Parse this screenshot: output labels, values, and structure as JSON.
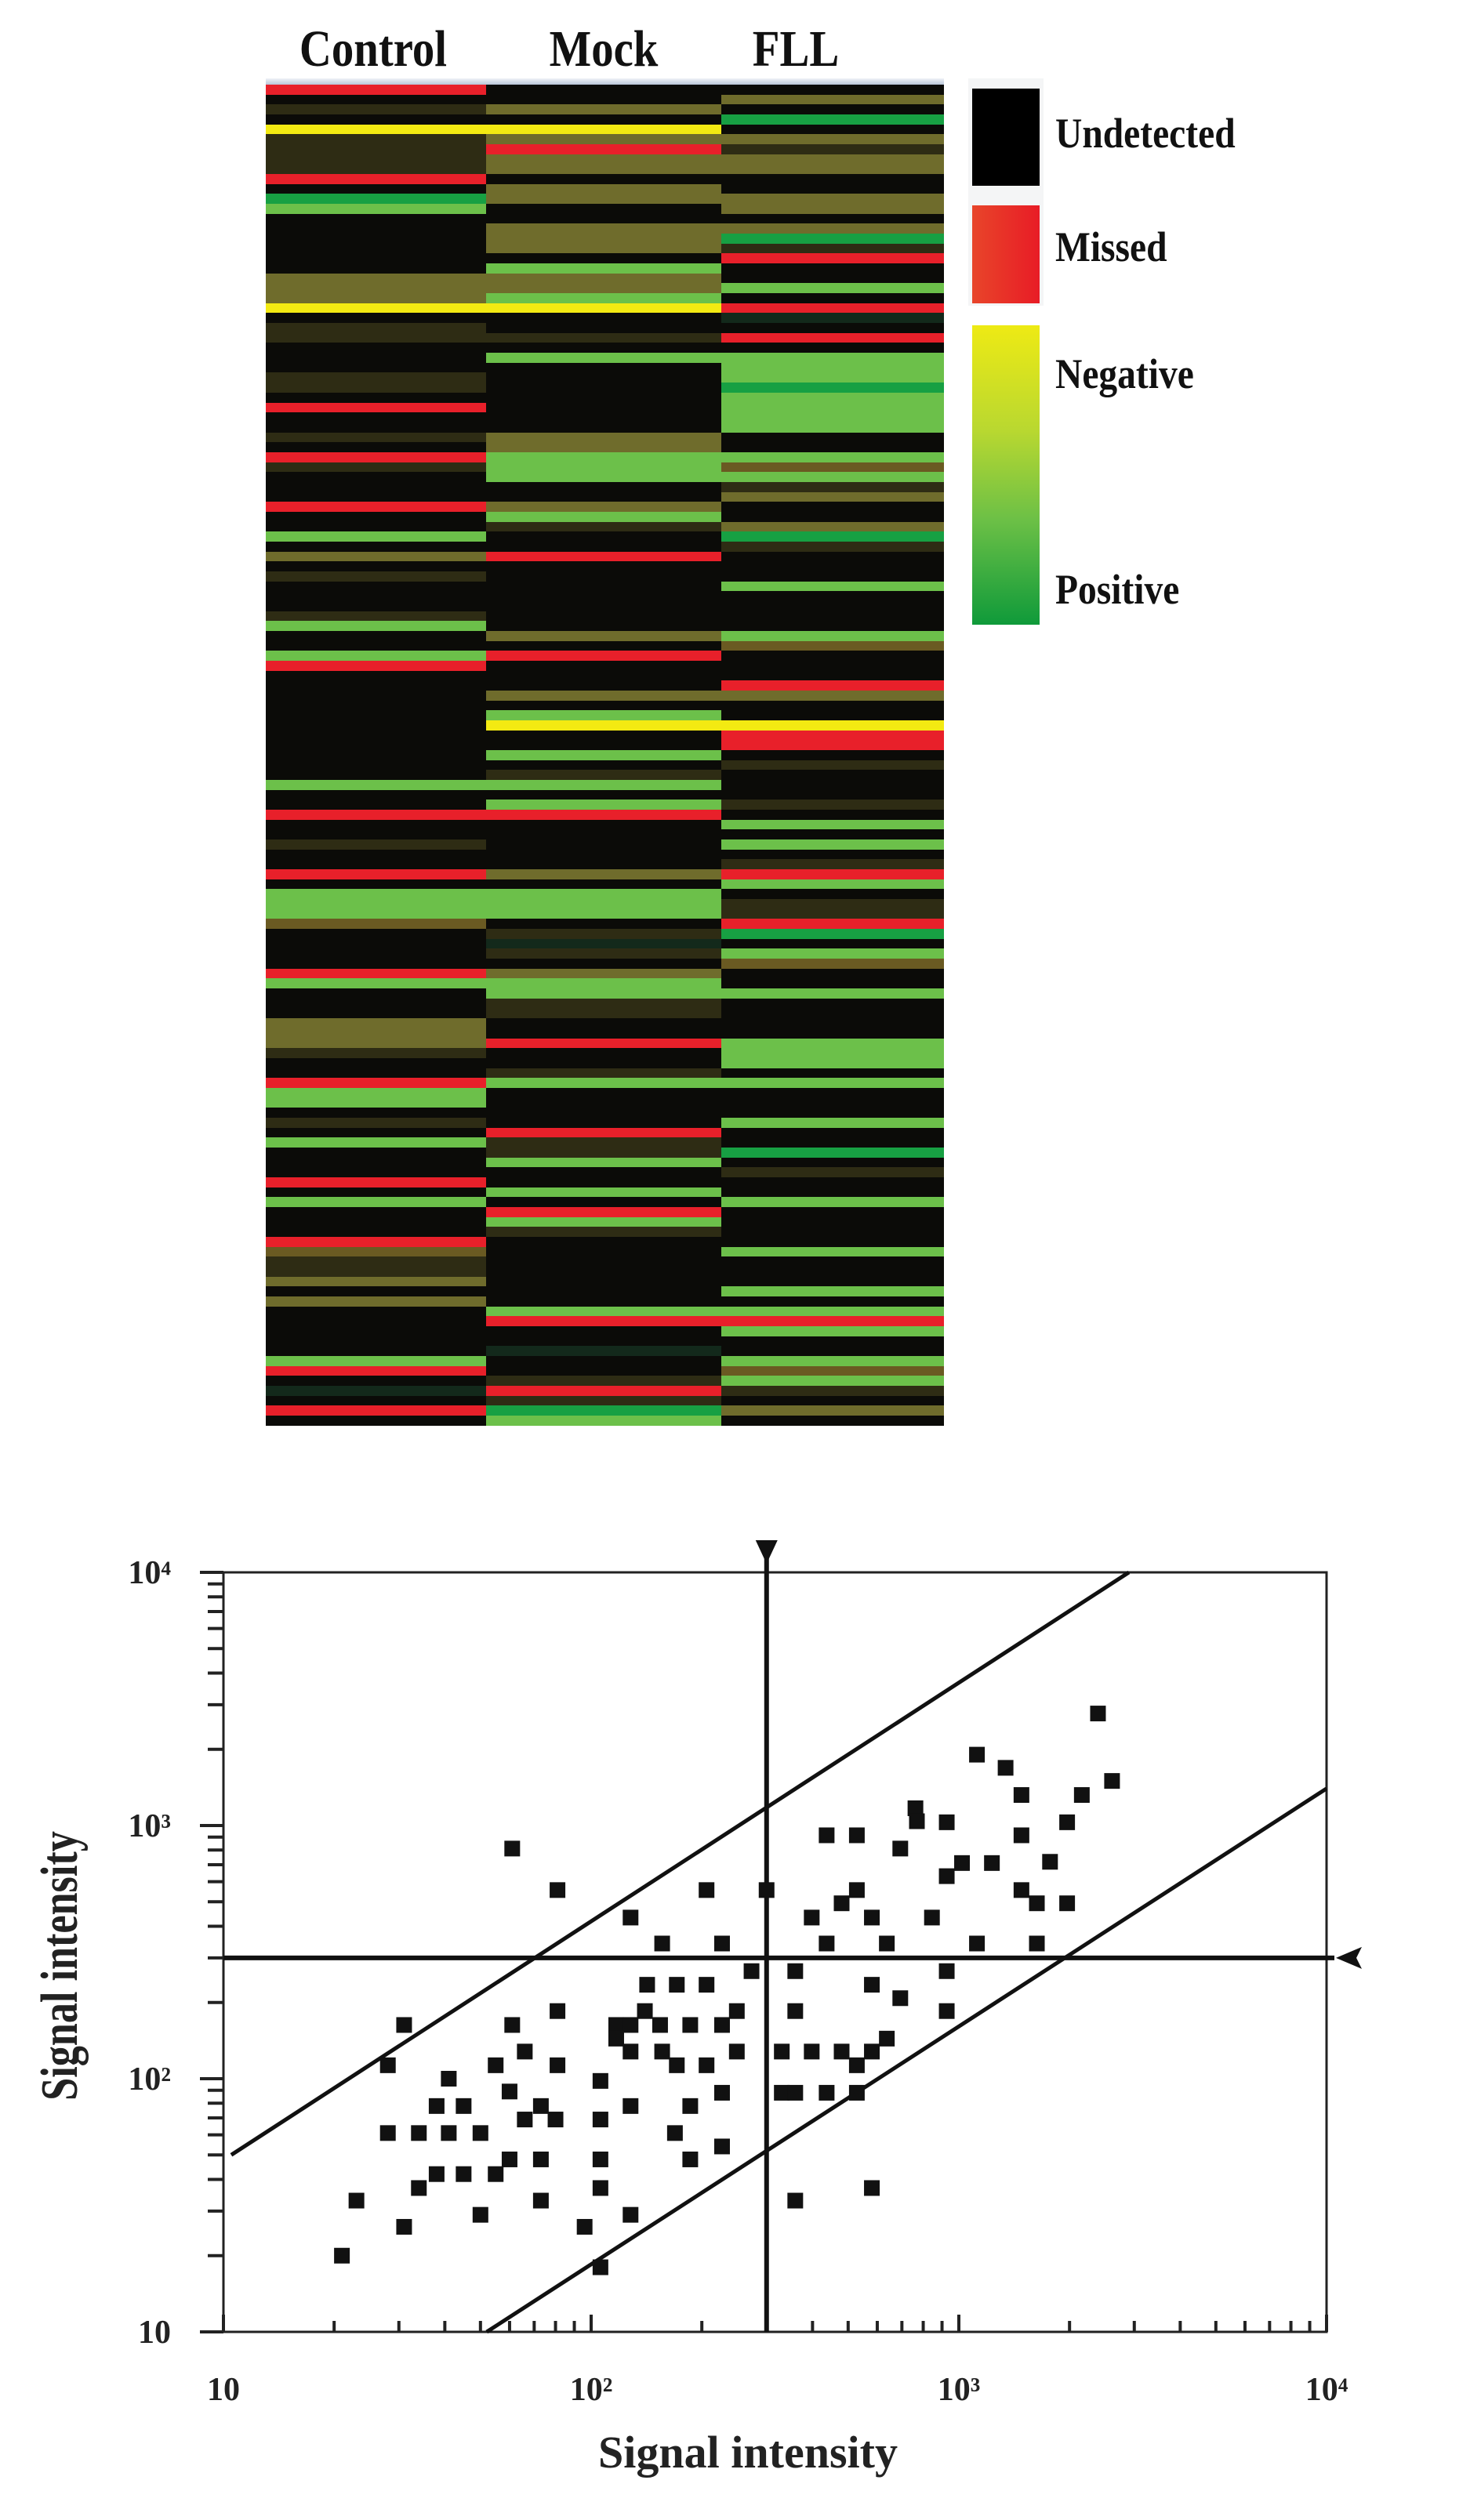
{
  "chart_data": [
    {
      "type": "heatmap",
      "columns": [
        "Control",
        "Mock",
        "FLL"
      ],
      "color_key": {
        "K": {
          "label": "Undetected",
          "color": "#0b0b08"
        },
        "D": {
          "label": "dark intermediate",
          "color": "#2e2c14"
        },
        "O": {
          "label": "olive intermediate",
          "color": "#6f6c2c"
        },
        "B": {
          "label": "brown intermediate",
          "color": "#6a5a22"
        },
        "L": {
          "label": "dark green",
          "color": "#13291b"
        },
        "Y": {
          "label": "Negative",
          "color": "#f3ea12"
        },
        "R": {
          "label": "Missed",
          "color": "#e8202a"
        },
        "G": {
          "label": "Positive (light)",
          "color": "#6cc04a"
        },
        "E": {
          "label": "Positive (strong)",
          "color": "#17a043"
        }
      },
      "rows": {
        "Control": "RKDKYDDDDRKEGKKKKKKOOOYKDDKKKDDKRKKDKRDKKKRKKGKOKDKKKDGKKGRKKKKKKKKKKKGKKRKKDKKRKGGGBKKKKRGKKKOOODKKRGGKDKGKKKRKGKKKRBDDOKOKKKKKGRKLKRK",
        "Mock": "KKOKYOROOKOOKKOOOKGOOGYKKDKGKKKKKKKOOGGGKKOGDKKRKKKKKKKOKRKKKOKGYKKGKDGKGRKKKKKOKGGGKDLDKOGGDDKKRKKDGKKKKRDDGKKGKRGDKKKKKKKGRKKLKKDRDEG",
        "FLL": "KOKEKODOOKKOOKOEDRKKGKRLKRKGGGEGGGGKKGBGDOKKOEDKKKGKKKKGBKKKROKKYRRKDKKKDKGKGKDRGKDDREKGBKKGKKKKGGGKGKKKGKKEKDKKGKKKKGKKKGKGRGKKGBGDKOK"
      },
      "legend": {
        "undetected": {
          "label": "Undetected",
          "color": "#000000"
        },
        "missed": {
          "label": "Missed",
          "color": "#e8202a"
        },
        "gradient": {
          "negative_label": "Negative",
          "positive_label": "Positive",
          "top_color": "#eeea14",
          "bottom_color": "#0f9a3a"
        }
      }
    },
    {
      "type": "scatter",
      "xlabel": "Signal intensity",
      "ylabel": "Signal intensity",
      "xscale": "log",
      "yscale": "log",
      "xlim": [
        10,
        10000
      ],
      "ylim": [
        10,
        10000
      ],
      "x_tick_labels": [
        {
          "value": 10,
          "label": "10"
        },
        {
          "value": 100,
          "label": "10²"
        },
        {
          "value": 1000,
          "label": "10³"
        },
        {
          "value": 10000,
          "label": "10⁴"
        }
      ],
      "y_tick_labels": [
        {
          "value": 10,
          "label": "10"
        },
        {
          "value": 100,
          "label": "10²"
        },
        {
          "value": 1000,
          "label": "10³"
        },
        {
          "value": 10000,
          "label": "10⁴"
        }
      ],
      "threshold_x": 300,
      "threshold_y": 300,
      "reference_lines": [
        {
          "name": "upper-bound",
          "from": [
            10.5,
            50
          ],
          "to": [
            2900,
            10000
          ]
        },
        {
          "name": "lower-bound",
          "from": [
            52,
            10
          ],
          "to": [
            10000,
            1400
          ]
        }
      ],
      "points": [
        [
          2390,
          2770
        ],
        [
          1120,
          1905
        ],
        [
          1340,
          1690
        ],
        [
          2610,
          1500
        ],
        [
          1480,
          1320
        ],
        [
          2160,
          1320
        ],
        [
          762,
          1170
        ],
        [
          769,
          1040
        ],
        [
          927,
          1030
        ],
        [
          1970,
          1030
        ],
        [
          437,
          915
        ],
        [
          528,
          915
        ],
        [
          1480,
          915
        ],
        [
          61,
          811
        ],
        [
          693,
          811
        ],
        [
          1020,
          711
        ],
        [
          1230,
          711
        ],
        [
          1770,
          719
        ],
        [
          927,
          631
        ],
        [
          81,
          556
        ],
        [
          206,
          556
        ],
        [
          300,
          556
        ],
        [
          528,
          556
        ],
        [
          480,
          493
        ],
        [
          1480,
          556
        ],
        [
          1630,
          493
        ],
        [
          1970,
          493
        ],
        [
          128,
          433
        ],
        [
          398,
          433
        ],
        [
          580,
          433
        ],
        [
          845,
          433
        ],
        [
          156,
          342
        ],
        [
          227,
          342
        ],
        [
          437,
          342
        ],
        [
          637,
          342
        ],
        [
          1120,
          342
        ],
        [
          1630,
          342
        ],
        [
          273,
          266
        ],
        [
          359,
          266
        ],
        [
          927,
          266
        ],
        [
          142,
          235
        ],
        [
          171,
          235
        ],
        [
          206,
          235
        ],
        [
          580,
          235
        ],
        [
          693,
          208
        ],
        [
          81,
          185
        ],
        [
          140,
          185
        ],
        [
          249,
          185
        ],
        [
          359,
          185
        ],
        [
          927,
          185
        ],
        [
          31,
          163
        ],
        [
          61,
          163
        ],
        [
          117,
          163
        ],
        [
          128,
          163
        ],
        [
          154,
          163
        ],
        [
          186,
          163
        ],
        [
          227,
          163
        ],
        [
          117,
          144
        ],
        [
          637,
          144
        ],
        [
          66,
          128
        ],
        [
          128,
          128
        ],
        [
          156,
          128
        ],
        [
          249,
          128
        ],
        [
          330,
          128
        ],
        [
          398,
          128
        ],
        [
          480,
          128
        ],
        [
          580,
          128
        ],
        [
          28,
          113
        ],
        [
          81,
          113
        ],
        [
          171,
          113
        ],
        [
          206,
          113
        ],
        [
          528,
          113
        ],
        [
          41,
          100
        ],
        [
          106,
          98
        ],
        [
          55,
          113
        ],
        [
          60,
          89
        ],
        [
          227,
          88
        ],
        [
          330,
          88
        ],
        [
          359,
          88
        ],
        [
          437,
          88
        ],
        [
          528,
          88
        ],
        [
          38,
          78
        ],
        [
          45,
          78
        ],
        [
          128,
          78
        ],
        [
          186,
          78
        ],
        [
          73,
          78
        ],
        [
          66,
          69
        ],
        [
          80,
          69
        ],
        [
          106,
          69
        ],
        [
          28,
          61
        ],
        [
          34,
          61
        ],
        [
          41,
          61
        ],
        [
          50,
          61
        ],
        [
          169,
          61
        ],
        [
          227,
          54
        ],
        [
          60,
          48
        ],
        [
          73,
          48
        ],
        [
          106,
          48
        ],
        [
          186,
          48
        ],
        [
          38,
          42
        ],
        [
          45,
          42
        ],
        [
          55,
          42
        ],
        [
          34,
          37
        ],
        [
          106,
          37
        ],
        [
          580,
          37
        ],
        [
          23,
          33
        ],
        [
          73,
          33
        ],
        [
          359,
          33
        ],
        [
          50,
          29
        ],
        [
          128,
          29
        ],
        [
          31,
          26
        ],
        [
          96,
          26
        ],
        [
          21,
          20
        ],
        [
          106,
          18
        ]
      ]
    }
  ]
}
